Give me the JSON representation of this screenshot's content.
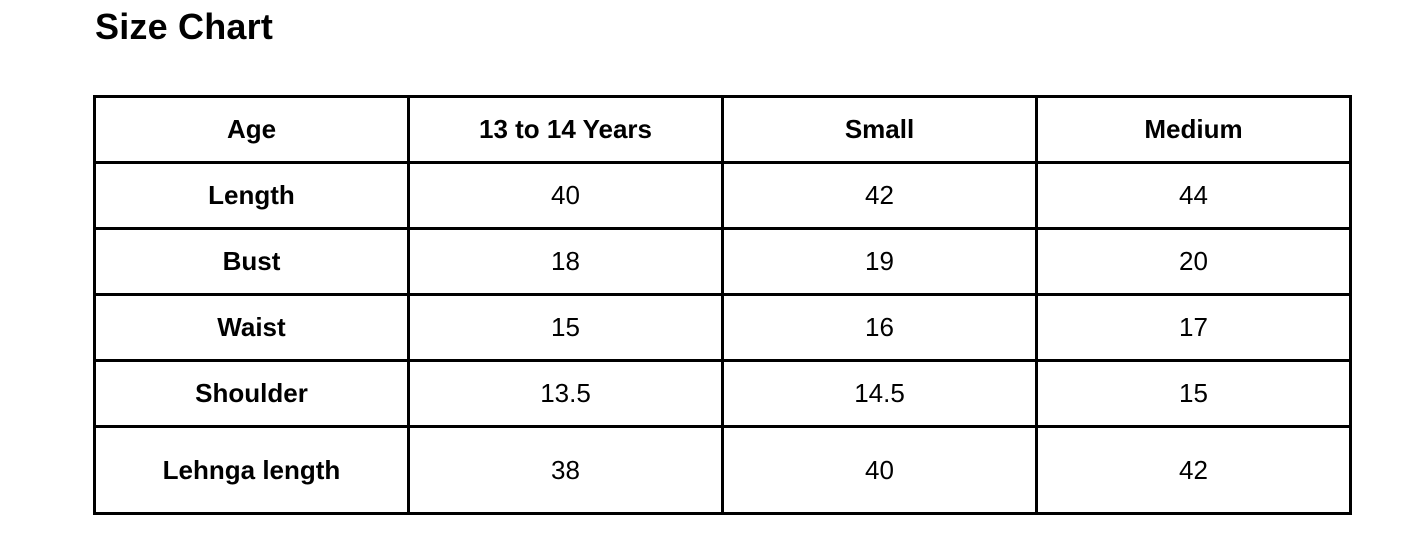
{
  "page": {
    "title": "Size Chart"
  },
  "chart_data": {
    "type": "table",
    "title": "Size Chart",
    "columns": [
      "Age",
      "13 to 14 Years",
      "Small",
      "Medium"
    ],
    "rows": [
      {
        "label": "Length",
        "values": [
          "40",
          "42",
          "44"
        ]
      },
      {
        "label": "Bust",
        "values": [
          "18",
          "19",
          "20"
        ]
      },
      {
        "label": "Waist",
        "values": [
          "15",
          "16",
          "17"
        ]
      },
      {
        "label": "Shoulder",
        "values": [
          "13.5",
          "14.5",
          "15"
        ]
      },
      {
        "label": "Lehnga length",
        "values": [
          "38",
          "40",
          "42"
        ]
      }
    ]
  },
  "colors": {
    "text": "#000000",
    "border": "#000000",
    "background": "#ffffff"
  }
}
